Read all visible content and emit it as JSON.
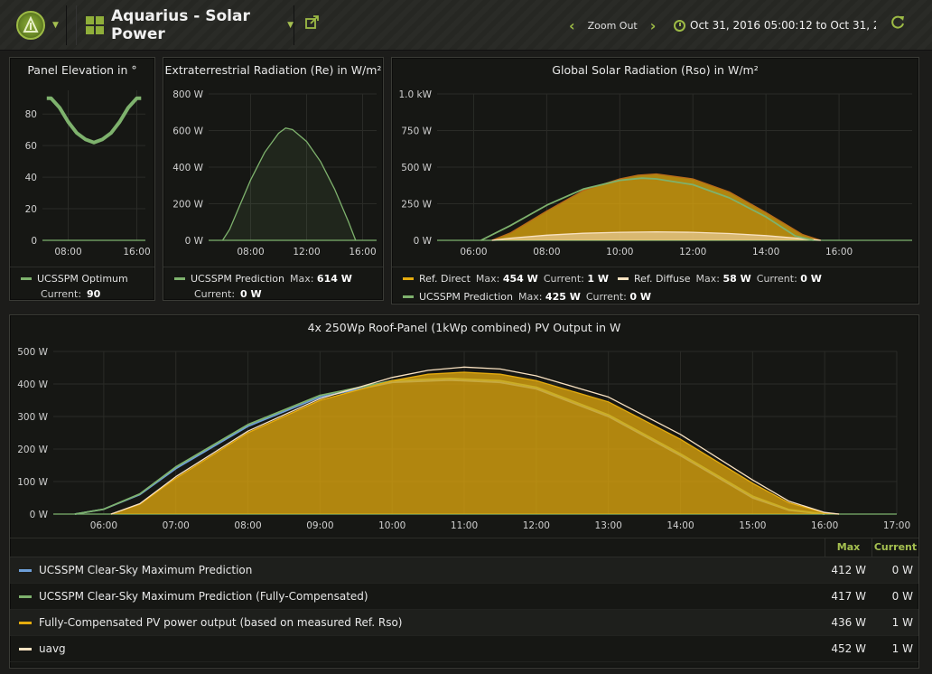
{
  "nav": {
    "title": "Aquarius - Solar Power",
    "zoom_out_label": "Zoom Out",
    "time_range": "Oct 31, 2016 05:00:12 to Oct 31, 20..."
  },
  "colors": {
    "accent": "#9dbb45",
    "green_series": "#7eb26d",
    "blue_series": "#6d9fd8",
    "yellow_series": "#e5ac0e",
    "cream_series": "#f9e2c1"
  },
  "panels": {
    "elevation": {
      "title": "Panel Elevation in °",
      "legend": {
        "name": "UCSSPM Optimum",
        "current_label": "Current:",
        "current": "90"
      }
    },
    "extraterrestrial": {
      "title": "Extraterrestrial Radiation (Re) in W/m²",
      "legend": {
        "name": "UCSSPM Prediction",
        "max_label": "Max:",
        "max": "614 W",
        "current_label": "Current:",
        "current": "0 W"
      }
    },
    "global": {
      "title": "Global Solar Radiation (Rso) in W/m²",
      "legend": [
        {
          "name": "Ref. Direct",
          "max_label": "Max:",
          "max": "454 W",
          "current_label": "Current:",
          "current": "1 W"
        },
        {
          "name": "Ref. Diffuse",
          "max_label": "Max:",
          "max": "58 W",
          "current_label": "Current:",
          "current": "0 W"
        },
        {
          "name": "UCSSPM Prediction",
          "max_label": "Max:",
          "max": "425 W",
          "current_label": "Current:",
          "current": "0 W"
        }
      ]
    },
    "pv": {
      "title": "4x 250Wp Roof-Panel (1kWp combined) PV Output in W",
      "legend_header": {
        "max": "Max",
        "current": "Current"
      },
      "legend": [
        {
          "name": "UCSSPM Clear-Sky Maximum Prediction",
          "max": "412 W",
          "current": "0 W"
        },
        {
          "name": "UCSSPM Clear-Sky Maximum Prediction (Fully-Compensated)",
          "max": "417 W",
          "current": "0 W"
        },
        {
          "name": "Fully-Compensated PV power output (based on measured Ref. Rso)",
          "max": "436 W",
          "current": "1 W"
        },
        {
          "name": "uavg",
          "max": "452 W",
          "current": "1 W"
        }
      ]
    }
  },
  "chart_data": [
    {
      "type": "line",
      "panel": "elevation",
      "x_ticks": [
        "08:00",
        "16:00"
      ],
      "y_ticks": [
        "0",
        "20",
        "40",
        "60",
        "80"
      ],
      "ylim": [
        0,
        95
      ],
      "series": [
        {
          "name": "UCSSPM Optimum",
          "x": [
            5.5,
            6,
            7,
            8,
            9,
            10,
            11,
            12,
            13,
            14,
            15,
            16,
            16.5
          ],
          "y": [
            90,
            90,
            84,
            75,
            68,
            64,
            62,
            64,
            68,
            75,
            84,
            90,
            90
          ]
        }
      ]
    },
    {
      "type": "area",
      "panel": "extraterrestrial",
      "x_ticks": [
        "08:00",
        "12:00",
        "16:00"
      ],
      "y_ticks": [
        "0 W",
        "200 W",
        "400 W",
        "600 W",
        "800 W"
      ],
      "ylim": [
        0,
        800
      ],
      "series": [
        {
          "name": "UCSSPM Prediction",
          "x": [
            6,
            6.5,
            7,
            8,
            9,
            10,
            10.5,
            11,
            12,
            13,
            14,
            15,
            15.5
          ],
          "y": [
            0,
            60,
            150,
            330,
            480,
            585,
            614,
            605,
            540,
            430,
            280,
            100,
            0
          ]
        }
      ]
    },
    {
      "type": "area",
      "panel": "global",
      "x_ticks": [
        "06:00",
        "08:00",
        "10:00",
        "12:00",
        "14:00",
        "16:00"
      ],
      "y_ticks": [
        "0 W",
        "250 W",
        "500 W",
        "750 W",
        "1.0 kW"
      ],
      "ylim": [
        0,
        1000
      ],
      "series": [
        {
          "name": "Ref. Direct",
          "x": [
            6.5,
            7,
            8,
            9,
            10,
            10.5,
            11,
            12,
            13,
            14,
            15,
            15.5
          ],
          "y": [
            0,
            50,
            200,
            340,
            420,
            445,
            454,
            420,
            330,
            190,
            40,
            0
          ]
        },
        {
          "name": "Ref. Diffuse",
          "x": [
            6.5,
            7,
            8,
            9,
            10,
            11,
            12,
            13,
            14,
            15,
            15.5
          ],
          "y": [
            0,
            15,
            35,
            48,
            55,
            58,
            55,
            46,
            32,
            12,
            0
          ]
        },
        {
          "name": "UCSSPM Prediction",
          "x": [
            6.2,
            7,
            8,
            9,
            10,
            10.6,
            11,
            12,
            13,
            14,
            14.8,
            15.3
          ],
          "y": [
            0,
            100,
            240,
            350,
            410,
            425,
            420,
            380,
            290,
            160,
            30,
            0
          ]
        }
      ]
    },
    {
      "type": "area",
      "panel": "pv",
      "x_ticks": [
        "06:00",
        "07:00",
        "08:00",
        "09:00",
        "10:00",
        "11:00",
        "12:00",
        "13:00",
        "14:00",
        "15:00",
        "16:00",
        "17:00"
      ],
      "y_ticks": [
        "0 W",
        "100 W",
        "200 W",
        "300 W",
        "400 W",
        "500 W"
      ],
      "ylim": [
        0,
        500
      ],
      "series": [
        {
          "name": "UCSSPM Clear-Sky Maximum Prediction",
          "x": [
            5.6,
            6,
            6.5,
            7,
            8,
            9,
            10,
            10.8,
            11.5,
            12,
            13,
            14,
            15,
            15.5,
            16
          ],
          "y": [
            0,
            15,
            60,
            140,
            270,
            360,
            405,
            412,
            405,
            385,
            300,
            180,
            50,
            12,
            0
          ]
        },
        {
          "name": "UCSSPM Clear-Sky Maximum Prediction (Fully-Compensated)",
          "x": [
            5.6,
            6,
            6.5,
            7,
            8,
            9,
            10,
            10.8,
            11.5,
            12,
            13,
            14,
            15,
            15.5,
            16
          ],
          "y": [
            0,
            15,
            62,
            145,
            275,
            365,
            410,
            417,
            410,
            390,
            305,
            185,
            55,
            14,
            0
          ]
        },
        {
          "name": "Fully-Compensated PV power output (based on measured Ref. Rso)",
          "x": [
            6.1,
            6.5,
            7,
            8,
            9,
            10,
            10.5,
            11,
            11.5,
            12,
            13,
            14,
            15,
            15.5,
            16,
            16.2
          ],
          "y": [
            0,
            30,
            110,
            250,
            350,
            410,
            430,
            436,
            430,
            410,
            345,
            230,
            95,
            35,
            4,
            0
          ]
        },
        {
          "name": "uavg",
          "x": [
            6.1,
            6.5,
            7,
            8,
            9,
            10,
            10.5,
            11,
            11.5,
            12,
            13,
            14,
            15,
            15.5,
            16,
            16.2
          ],
          "y": [
            0,
            32,
            115,
            255,
            355,
            420,
            442,
            452,
            446,
            425,
            360,
            245,
            105,
            40,
            5,
            0
          ]
        }
      ]
    }
  ]
}
